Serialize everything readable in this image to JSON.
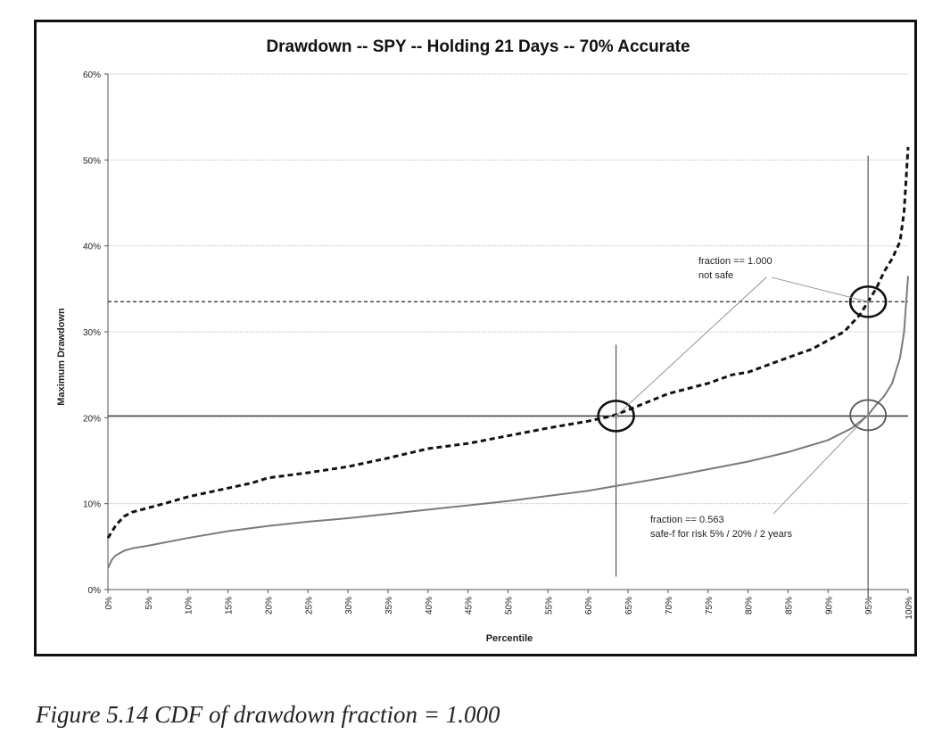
{
  "chart_data": {
    "type": "line",
    "title": "Drawdown -- SPY -- Holding 21 Days -- 70% Accurate",
    "xlabel": "Percentile",
    "ylabel": "Maximum Drawdown",
    "xlim": [
      0,
      100
    ],
    "ylim": [
      0,
      60
    ],
    "x_ticks": [
      "0%",
      "5%",
      "10%",
      "15%",
      "20%",
      "25%",
      "30%",
      "35%",
      "40%",
      "45%",
      "50%",
      "55%",
      "60%",
      "65%",
      "70%",
      "75%",
      "80%",
      "85%",
      "90%",
      "95%",
      "100%"
    ],
    "y_ticks": [
      "0%",
      "10%",
      "20%",
      "30%",
      "40%",
      "50%",
      "60%"
    ],
    "grid": true,
    "series": [
      {
        "style": "dashed",
        "color": "#111111",
        "x": [
          0,
          1,
          2,
          3,
          5,
          7,
          10,
          12,
          15,
          18,
          20,
          25,
          30,
          35,
          40,
          45,
          50,
          55,
          60,
          63,
          65,
          70,
          75,
          78,
          80,
          85,
          88,
          90,
          92,
          94,
          95,
          96,
          97,
          98,
          99,
          99.5,
          100
        ],
        "y": [
          6.0,
          7.5,
          8.5,
          9.0,
          9.5,
          10.0,
          10.8,
          11.2,
          11.8,
          12.4,
          13.0,
          13.6,
          14.3,
          15.3,
          16.4,
          17.0,
          17.9,
          18.8,
          19.6,
          20.2,
          20.9,
          22.8,
          24.0,
          25.0,
          25.3,
          27.0,
          28.0,
          29.0,
          30.0,
          32.0,
          33.5,
          35.0,
          37.0,
          38.5,
          40.5,
          44.0,
          51.5
        ]
      },
      {
        "style": "solid",
        "color": "#7a7a7a",
        "x": [
          0,
          0.5,
          1,
          2,
          3,
          5,
          10,
          15,
          20,
          25,
          30,
          35,
          40,
          45,
          50,
          55,
          60,
          65,
          70,
          75,
          80,
          85,
          90,
          93,
          95,
          96,
          97,
          98,
          99,
          99.5,
          100
        ],
        "y": [
          2.5,
          3.5,
          4.0,
          4.5,
          4.8,
          5.1,
          6.0,
          6.8,
          7.4,
          7.9,
          8.3,
          8.8,
          9.3,
          9.8,
          10.3,
          10.9,
          11.5,
          12.3,
          13.1,
          14.0,
          14.9,
          16.0,
          17.4,
          18.8,
          20.3,
          21.5,
          22.5,
          24.0,
          27.0,
          30.0,
          36.5
        ]
      }
    ],
    "reference_lines": [
      {
        "orientation": "horizontal",
        "value": 33.5,
        "style": "dashed"
      },
      {
        "orientation": "horizontal",
        "value": 20.2,
        "style": "solid"
      },
      {
        "orientation": "vertical",
        "value": 63.5,
        "style": "solid"
      },
      {
        "orientation": "vertical",
        "value": 95,
        "style": "solid"
      }
    ],
    "circles": [
      {
        "x": 63.5,
        "y": 20.2,
        "weight": "heavy"
      },
      {
        "x": 95,
        "y": 33.5,
        "weight": "heavy"
      },
      {
        "x": 95,
        "y": 20.3,
        "weight": "light"
      }
    ],
    "annotations": [
      {
        "lines": [
          "fraction == 1.000",
          "not safe"
        ],
        "points_to": [
          [
            63.5,
            20.2
          ],
          [
            95,
            33.5
          ]
        ]
      },
      {
        "lines": [
          "fraction == 0.563",
          "safe-f   for risk 5% / 20% / 2 years"
        ],
        "points_to": [
          [
            95,
            20.3
          ]
        ]
      }
    ]
  },
  "caption": "Figure 5.14  CDF of drawdown fraction = 1.000"
}
